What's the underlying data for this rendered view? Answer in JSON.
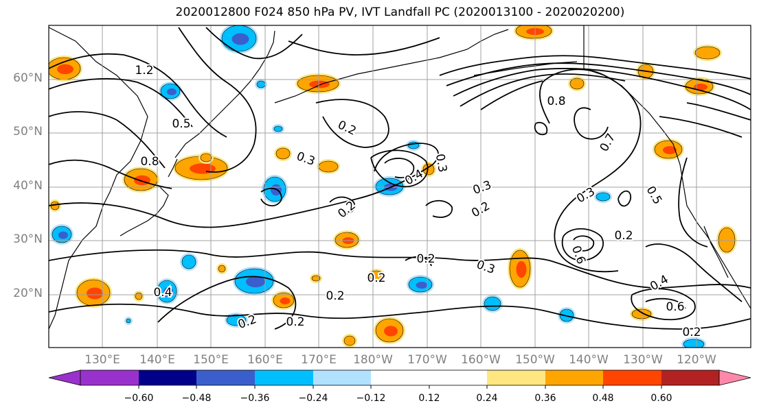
{
  "title": "2020012800 F024 850 hPa PV, IVT Landfall PC (2020013100 - 2020020200)",
  "lat_labels": [
    "60°N",
    "50°N",
    "40°N",
    "30°N",
    "20°N"
  ],
  "lon_labels": [
    "130°E",
    "140°E",
    "150°E",
    "160°E",
    "170°E",
    "180°W",
    "170°W",
    "160°W",
    "150°W",
    "140°W",
    "130°W",
    "120°W"
  ],
  "colorbar": {
    "colors": [
      "#9932cc",
      "#00008b",
      "#3a5fcd",
      "#00bfff",
      "#b0e2ff",
      "#ffffff",
      "#ffffff",
      "#ffe680",
      "#ffa500",
      "#ff4500",
      "#b22222",
      "#ff88aa"
    ],
    "tick_labels": [
      "−0.60",
      "−0.48",
      "−0.36",
      "−0.24",
      "−0.12",
      "0.12",
      "0.24",
      "0.36",
      "0.48",
      "0.60"
    ]
  },
  "contour_labels": [
    "0.2",
    "0.2",
    "0.2",
    "0.2",
    "0.2",
    "0.2",
    "0.2",
    "0.2",
    "0.2",
    "0.3",
    "0.3",
    "0.3",
    "0.3",
    "0.3",
    "0.4",
    "0.4",
    "0.4",
    "0.5",
    "0.5",
    "0.6",
    "0.6",
    "0.7",
    "0.8",
    "0.8",
    "1.2",
    "0.2"
  ],
  "colors": {
    "contour": "#000000",
    "coast": "#000000",
    "grid": "#a0a0a0",
    "axis_label": "#808080",
    "pos_fill": "#ffa500",
    "pos_fill_strong": "#ff4500",
    "pos_edge": "#ffe680",
    "neg_fill": "#00bfff",
    "neg_fill_strong": "#3a5fcd",
    "neg_edge": "#b0e2ff"
  }
}
